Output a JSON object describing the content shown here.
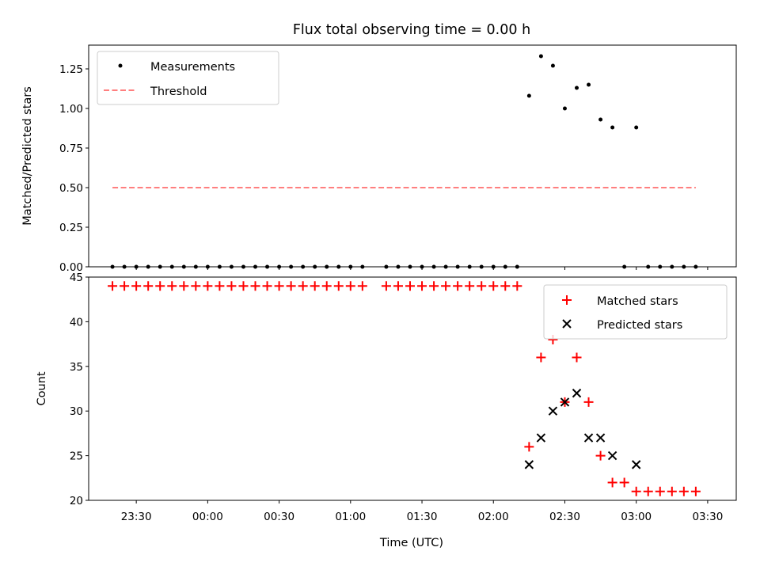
{
  "chart_data": [
    {
      "type": "scatter",
      "panel": "top",
      "title": "Flux total observing time = 0.00 h",
      "xlabel": "",
      "ylabel": "Matched/Predicted stars",
      "ylim": [
        0.0,
        1.4
      ],
      "yticks": [
        "0.00",
        "0.25",
        "0.50",
        "0.75",
        "1.00",
        "1.25"
      ],
      "xlim": [
        "23:10",
        "03:42"
      ],
      "legend_position": "top-left",
      "series": [
        {
          "name": "Measurements",
          "marker": "dot",
          "color": "#000000",
          "x": [
            "23:20",
            "23:25",
            "23:30",
            "23:35",
            "23:40",
            "23:45",
            "23:50",
            "23:55",
            "00:00",
            "00:05",
            "00:10",
            "00:15",
            "00:20",
            "00:25",
            "00:30",
            "00:35",
            "00:40",
            "00:45",
            "00:50",
            "00:55",
            "01:00",
            "01:05",
            "01:15",
            "01:20",
            "01:25",
            "01:30",
            "01:35",
            "01:40",
            "01:45",
            "01:50",
            "01:55",
            "02:00",
            "02:05",
            "02:10",
            "02:15",
            "02:20",
            "02:25",
            "02:30",
            "02:35",
            "02:40",
            "02:45",
            "02:50",
            "02:55",
            "03:00",
            "03:05",
            "03:10",
            "03:15",
            "03:20",
            "03:25"
          ],
          "y": [
            0,
            0,
            0,
            0,
            0,
            0,
            0,
            0,
            0,
            0,
            0,
            0,
            0,
            0,
            0,
            0,
            0,
            0,
            0,
            0,
            0,
            0,
            0,
            0,
            0,
            0,
            0,
            0,
            0,
            0,
            0,
            0,
            0,
            0,
            1.08,
            1.33,
            1.27,
            1.0,
            1.13,
            1.15,
            0.93,
            0.88,
            0,
            0.88,
            0,
            0,
            0,
            0,
            0
          ]
        },
        {
          "name": "Threshold",
          "style": "dashed",
          "color": "#ff7f7f",
          "x": [
            "23:20",
            "03:25"
          ],
          "y": [
            0.5,
            0.5
          ]
        }
      ]
    },
    {
      "type": "scatter",
      "panel": "bottom",
      "title": "",
      "xlabel": "Time (UTC)",
      "ylabel": "Count",
      "ylim": [
        20,
        45
      ],
      "yticks": [
        "20",
        "25",
        "30",
        "35",
        "40",
        "45"
      ],
      "xlim": [
        "23:10",
        "03:42"
      ],
      "xticks": [
        "23:30",
        "00:00",
        "00:30",
        "01:00",
        "01:30",
        "02:00",
        "02:30",
        "03:00",
        "03:30"
      ],
      "legend_position": "top-right",
      "series": [
        {
          "name": "Matched stars",
          "marker": "plus",
          "color": "#ff0000",
          "x": [
            "23:20",
            "23:25",
            "23:30",
            "23:35",
            "23:40",
            "23:45",
            "23:50",
            "23:55",
            "00:00",
            "00:05",
            "00:10",
            "00:15",
            "00:20",
            "00:25",
            "00:30",
            "00:35",
            "00:40",
            "00:45",
            "00:50",
            "00:55",
            "01:00",
            "01:05",
            "01:15",
            "01:20",
            "01:25",
            "01:30",
            "01:35",
            "01:40",
            "01:45",
            "01:50",
            "01:55",
            "02:00",
            "02:05",
            "02:10",
            "02:15",
            "02:20",
            "02:25",
            "02:30",
            "02:35",
            "02:40",
            "02:45",
            "02:50",
            "02:55",
            "03:00",
            "03:05",
            "03:10",
            "03:15",
            "03:20",
            "03:25"
          ],
          "y": [
            44,
            44,
            44,
            44,
            44,
            44,
            44,
            44,
            44,
            44,
            44,
            44,
            44,
            44,
            44,
            44,
            44,
            44,
            44,
            44,
            44,
            44,
            44,
            44,
            44,
            44,
            44,
            44,
            44,
            44,
            44,
            44,
            44,
            44,
            26,
            36,
            38,
            31,
            36,
            31,
            25,
            22,
            22,
            21,
            21,
            21,
            21,
            21,
            21
          ]
        },
        {
          "name": "Predicted stars",
          "marker": "x",
          "color": "#000000",
          "x": [
            "02:15",
            "02:20",
            "02:25",
            "02:30",
            "02:35",
            "02:40",
            "02:45",
            "02:50",
            "03:00"
          ],
          "y": [
            24,
            27,
            30,
            31,
            32,
            27,
            27,
            25,
            24
          ]
        }
      ]
    }
  ]
}
